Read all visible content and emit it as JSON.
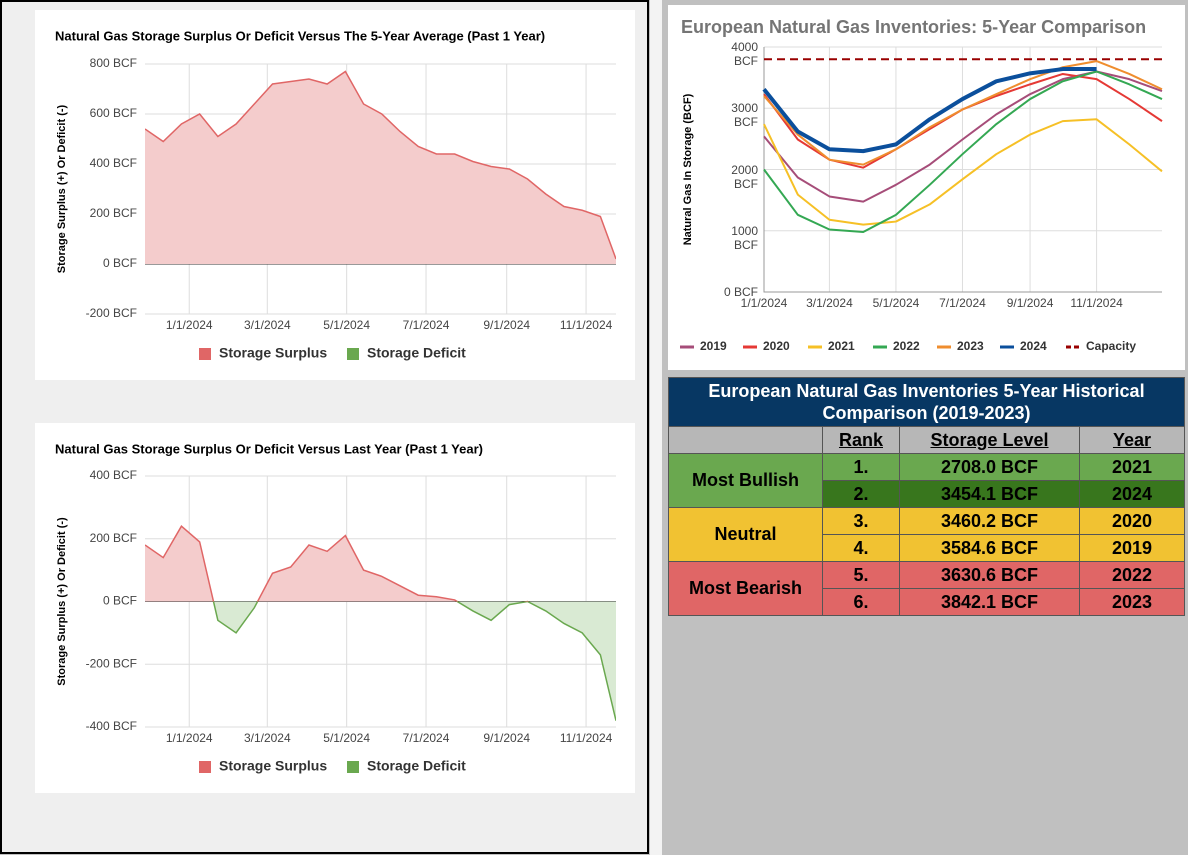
{
  "chart_data": [
    {
      "type": "area",
      "title": "Natural Gas Storage Surplus Or Deficit Versus The 5-Year Average (Past 1 Year)",
      "y_label": "Storage Surplus (+) Or Deficit (-)",
      "x": [
        "11/28/2023",
        "12/12/2023",
        "12/26/2023",
        "1/9/2024",
        "1/23/2024",
        "2/6/2024",
        "2/20/2024",
        "3/5/2024",
        "3/19/2024",
        "4/2/2024",
        "4/16/2024",
        "4/30/2024",
        "5/14/2024",
        "5/28/2024",
        "6/11/2024",
        "6/25/2024",
        "7/9/2024",
        "7/23/2024",
        "8/6/2024",
        "8/20/2024",
        "9/3/2024",
        "9/17/2024",
        "10/1/2024",
        "10/15/2024",
        "10/29/2024",
        "11/12/2024",
        "11/24/2024"
      ],
      "values": [
        540,
        490,
        560,
        600,
        510,
        560,
        640,
        720,
        730,
        740,
        720,
        770,
        640,
        600,
        530,
        470,
        440,
        440,
        410,
        390,
        380,
        340,
        280,
        230,
        215,
        190,
        20
      ],
      "positive": {
        "name": "Storage Surplus",
        "color": "#e06666",
        "fill": "#f4cccc"
      },
      "negative": {
        "name": "Storage Deficit",
        "color": "#6aa84f",
        "fill": "#d9ead3"
      },
      "xlim": [
        "11/28/2023",
        "11/24/2024"
      ],
      "xticks": [
        "1/1/2024",
        "3/1/2024",
        "5/1/2024",
        "7/1/2024",
        "9/1/2024",
        "11/1/2024"
      ],
      "ylim": [
        -200,
        800
      ],
      "yticks": [
        {
          "value": -200,
          "label": "-200 BCF"
        },
        {
          "value": 0,
          "label": "0 BCF"
        },
        {
          "value": 200,
          "label": "200 BCF"
        },
        {
          "value": 400,
          "label": "400 BCF"
        },
        {
          "value": 600,
          "label": "600 BCF"
        },
        {
          "value": 800,
          "label": "800 BCF"
        }
      ],
      "grid": true
    },
    {
      "type": "area",
      "title": "Natural Gas Storage Surplus Or Deficit Versus Last Year (Past 1 Year)",
      "y_label": "Storage Surplus (+) Or Deficit (-)",
      "x": [
        "11/28/2023",
        "12/12/2023",
        "12/26/2023",
        "1/9/2024",
        "1/23/2024",
        "2/6/2024",
        "2/20/2024",
        "3/5/2024",
        "3/19/2024",
        "4/2/2024",
        "4/16/2024",
        "4/30/2024",
        "5/14/2024",
        "5/28/2024",
        "6/11/2024",
        "6/25/2024",
        "7/9/2024",
        "7/23/2024",
        "8/6/2024",
        "8/20/2024",
        "9/3/2024",
        "9/17/2024",
        "10/1/2024",
        "10/15/2024",
        "10/29/2024",
        "11/12/2024",
        "11/24/2024"
      ],
      "values": [
        180,
        140,
        240,
        190,
        -60,
        -100,
        -20,
        90,
        110,
        180,
        160,
        210,
        100,
        80,
        50,
        20,
        15,
        5,
        -30,
        -60,
        -10,
        0,
        -30,
        -70,
        -100,
        -170,
        -380
      ],
      "positive": {
        "name": "Storage Surplus",
        "color": "#e06666",
        "fill": "#f4cccc"
      },
      "negative": {
        "name": "Storage Deficit",
        "color": "#6aa84f",
        "fill": "#d9ead3"
      },
      "xlim": [
        "11/28/2023",
        "11/24/2024"
      ],
      "xticks": [
        "1/1/2024",
        "3/1/2024",
        "5/1/2024",
        "7/1/2024",
        "9/1/2024",
        "11/1/2024"
      ],
      "ylim": [
        -400,
        400
      ],
      "yticks": [
        {
          "value": -400,
          "label": "-400 BCF"
        },
        {
          "value": -200,
          "label": "-200 BCF"
        },
        {
          "value": 0,
          "label": "0 BCF"
        },
        {
          "value": 200,
          "label": "200 BCF"
        },
        {
          "value": 400,
          "label": "400 BCF"
        }
      ],
      "grid": true
    },
    {
      "type": "line",
      "title": "European Natural Gas Inventories: 5-Year Comparison",
      "y_label": "Natural Gas In Storage (BCF)",
      "x": [
        "1/1/2024",
        "2/1/2024",
        "3/1/2024",
        "4/1/2024",
        "5/1/2024",
        "6/1/2024",
        "7/1/2024",
        "8/1/2024",
        "9/1/2024",
        "10/1/2024",
        "11/1/2024",
        "12/1/2024",
        "12/31/2024"
      ],
      "series": [
        {
          "name": "2019",
          "color": "#a64d79",
          "values": [
            2540,
            1870,
            1560,
            1475,
            1750,
            2080,
            2490,
            2900,
            3230,
            3475,
            3600,
            3475,
            3280
          ]
        },
        {
          "name": "2020",
          "color": "#e53935",
          "values": [
            3230,
            2490,
            2160,
            2030,
            2330,
            2660,
            2980,
            3200,
            3390,
            3560,
            3475,
            3150,
            2790
          ]
        },
        {
          "name": "2021",
          "color": "#f6c026",
          "values": [
            2740,
            1590,
            1180,
            1100,
            1150,
            1430,
            1840,
            2250,
            2570,
            2790,
            2820,
            2410,
            1970
          ]
        },
        {
          "name": "2022",
          "color": "#34a853",
          "values": [
            2000,
            1260,
            1020,
            980,
            1260,
            1750,
            2250,
            2740,
            3150,
            3440,
            3600,
            3390,
            3150
          ]
        },
        {
          "name": "2023",
          "color": "#ef8d2e",
          "values": [
            3200,
            2570,
            2160,
            2080,
            2330,
            2690,
            2980,
            3230,
            3475,
            3670,
            3770,
            3560,
            3310
          ]
        },
        {
          "name": "2024",
          "color": "#0b4f9c",
          "bold": true,
          "values": [
            3310,
            2620,
            2330,
            2300,
            2410,
            2820,
            3150,
            3440,
            3570,
            3640,
            3640,
            null,
            null
          ]
        },
        {
          "name": "Capacity",
          "color": "#990000",
          "dashed": true,
          "values": [
            3800,
            3800,
            3800,
            3800,
            3800,
            3800,
            3800,
            3800,
            3800,
            3800,
            3800,
            3800,
            3800
          ]
        }
      ],
      "xlim": [
        "1/1/2024",
        "12/31/2024"
      ],
      "xticks": [
        "1/1/2024",
        "3/1/2024",
        "5/1/2024",
        "7/1/2024",
        "9/1/2024",
        "11/1/2024"
      ],
      "ylim": [
        0,
        4000
      ],
      "yticks": [
        {
          "value": 0,
          "label": "0 BCF"
        },
        {
          "value": 1000,
          "label": "1000 BCF"
        },
        {
          "value": 2000,
          "label": "2000 BCF"
        },
        {
          "value": 3000,
          "label": "3000 BCF"
        },
        {
          "value": 4000,
          "label": "4000 BCF"
        }
      ],
      "grid": true
    }
  ],
  "table": {
    "title": "European Natural Gas Inventories 5-Year Historical Comparison (2019-2023)",
    "headers": [
      "Rank",
      "Storage Level",
      "Year"
    ],
    "groups": [
      {
        "label": "Most Bullish",
        "rows": [
          [
            "1.",
            "2708.0 BCF",
            "2021"
          ],
          [
            "2.",
            "3454.1 BCF",
            "2024"
          ]
        ]
      },
      {
        "label": "Neutral",
        "rows": [
          [
            "3.",
            "3460.2 BCF",
            "2020"
          ],
          [
            "4.",
            "3584.6 BCF",
            "2019"
          ]
        ]
      },
      {
        "label": "Most Bearish",
        "rows": [
          [
            "5.",
            "3630.6 BCF",
            "2022"
          ],
          [
            "6.",
            "3842.1 BCF",
            "2023"
          ]
        ]
      }
    ]
  }
}
